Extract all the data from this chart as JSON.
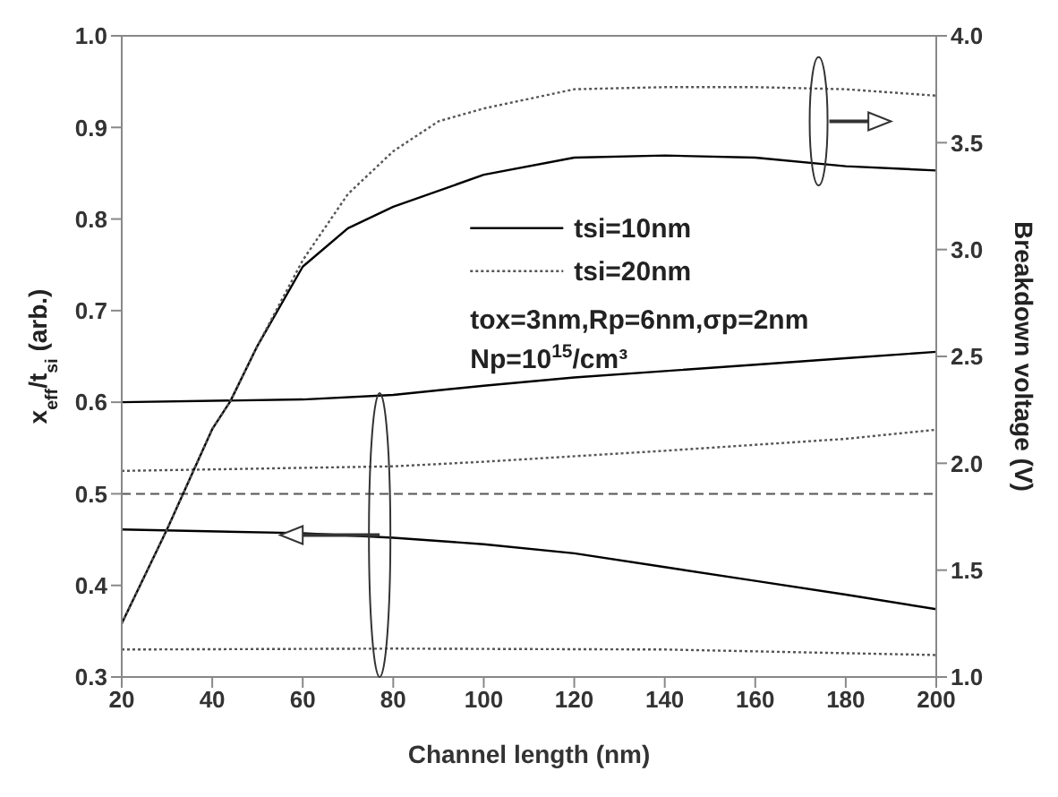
{
  "chart_data": {
    "type": "line",
    "xlabel": "Channel length (nm)",
    "ylabel": "x$_{eff}$/t$_{si}$ (arb.)",
    "y2label": "Breakdown voltage (V)",
    "xlim": [
      20,
      200
    ],
    "xticks": [
      20,
      40,
      60,
      80,
      100,
      120,
      140,
      160,
      180,
      200
    ],
    "ylim": [
      0.3,
      1.0
    ],
    "yticks": [
      0.3,
      0.4,
      0.5,
      0.6,
      0.7,
      0.8,
      0.9,
      {
        "value": 1.0,
        "label": "1.0"
      }
    ],
    "y2lim": [
      1.0,
      4.0
    ],
    "y2ticks": [
      {
        "value": 1.0,
        "label": "1.0"
      },
      1.5,
      {
        "value": 2.0,
        "label": "2.0"
      },
      2.5,
      {
        "value": 3.0,
        "label": "3.0"
      },
      3.5,
      {
        "value": 4.0,
        "label": "4.0"
      }
    ],
    "legend": "right",
    "marker": "none",
    "series": [
      {
        "name": "tsi=10nm",
        "color": "#000000",
        "line_style": "solid",
        "x": [
          20,
          60,
          80,
          100,
          120,
          140,
          160,
          180,
          200
        ],
        "values": [
          0.6,
          0.603,
          0.608,
          0.618,
          0.627,
          0.634,
          0.641,
          0.648,
          0.655
        ]
      },
      {
        "name": "tsi=20nm",
        "color": "#555555",
        "line_style": "dotted",
        "x": [
          20,
          80,
          100,
          140,
          180,
          200
        ],
        "values": [
          0.525,
          0.53,
          0.535,
          0.547,
          0.56,
          0.57
        ]
      },
      {
        "color": "#000000",
        "line_style": "solid",
        "x": [
          20,
          60,
          80,
          100,
          120,
          140,
          160,
          180,
          200
        ],
        "values": [
          0.461,
          0.457,
          0.452,
          0.445,
          0.435,
          0.42,
          0.405,
          0.39,
          0.374
        ]
      },
      {
        "color": "#555555",
        "line_style": "dotted",
        "x": [
          20,
          80,
          140,
          200
        ],
        "values": [
          0.33,
          0.331,
          0.33,
          0.324
        ]
      },
      {
        "color": "#000000",
        "line_style": "solid",
        "axis": "y2",
        "x": [
          20,
          30,
          40,
          44,
          50,
          60,
          70,
          80,
          100,
          120,
          140,
          160,
          180,
          200
        ],
        "values": [
          1.25,
          1.69,
          2.16,
          2.29,
          2.55,
          2.92,
          3.1,
          3.2,
          3.35,
          3.43,
          3.44,
          3.43,
          3.39,
          3.37
        ]
      },
      {
        "color": "#555555",
        "line_style": "dotted",
        "axis": "y2",
        "x": [
          20,
          30,
          40,
          44,
          50,
          60,
          70,
          80,
          90,
          100,
          120,
          140,
          160,
          180,
          200
        ],
        "values": [
          1.25,
          1.69,
          2.16,
          2.29,
          2.55,
          2.95,
          3.26,
          3.46,
          3.6,
          3.66,
          3.75,
          3.76,
          3.76,
          3.75,
          3.72
        ]
      }
    ],
    "ref_lines": [
      {
        "axis": "y",
        "value": 0.5,
        "color": "#555555",
        "line_style": "dashed"
      }
    ],
    "annotations": [
      "tox=3nm,Rp=6nm,σp=2nm",
      "Np=10$^{15}$/cm³"
    ]
  }
}
